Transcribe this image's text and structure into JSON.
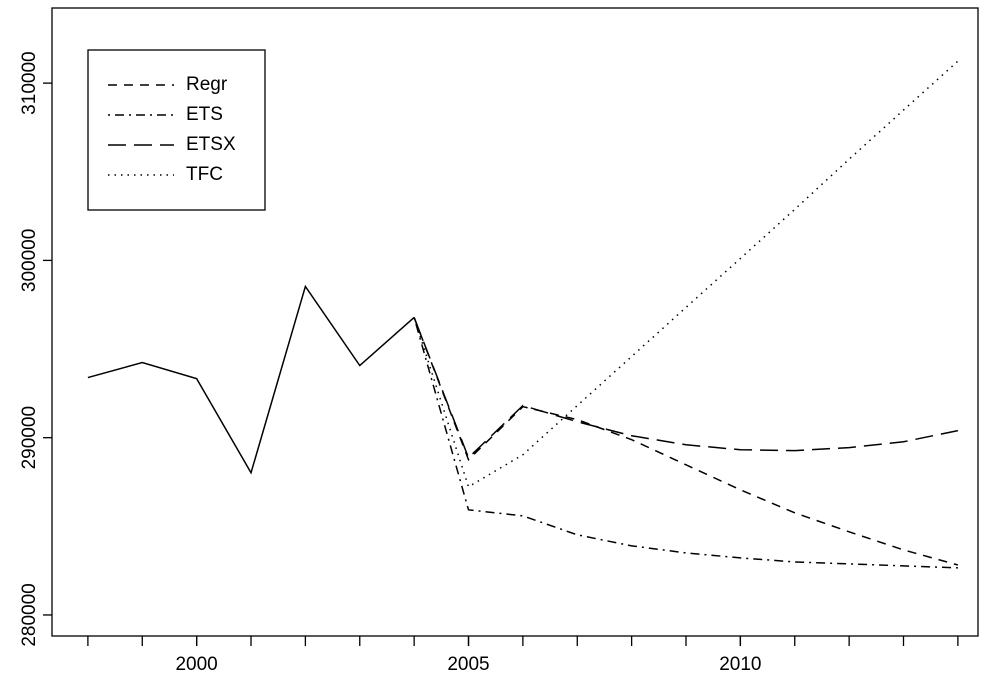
{
  "chart_data": {
    "type": "line",
    "x": [
      1998,
      1999,
      2000,
      2001,
      2002,
      2003,
      2004,
      2005,
      2006,
      2007,
      2008,
      2009,
      2010,
      2011,
      2012,
      2013,
      2014
    ],
    "series": [
      {
        "color": "#000000",
        "linestyle": "solid",
        "values": [
          293390,
          294240,
          293330,
          288020,
          298530,
          294070,
          296780,
          null,
          null,
          null,
          null,
          null,
          null,
          null,
          null,
          null,
          null
        ]
      },
      {
        "name": "Regr",
        "color": "#000000",
        "linestyle": "dashed",
        "values": [
          null,
          null,
          null,
          null,
          null,
          null,
          296780,
          288760,
          291750,
          291020,
          289890,
          288470,
          287060,
          285760,
          284690,
          283670,
          282820
        ]
      },
      {
        "name": "ETS",
        "color": "#000000",
        "linestyle": "dotdash",
        "values": [
          null,
          null,
          null,
          null,
          null,
          null,
          296780,
          285930,
          285590,
          284520,
          283900,
          283500,
          283220,
          282990,
          282880,
          282770,
          282660
        ]
      },
      {
        "name": "ETSX",
        "color": "#000000",
        "linestyle": "longdash",
        "values": [
          null,
          null,
          null,
          null,
          null,
          null,
          296780,
          288870,
          291810,
          290900,
          290110,
          289600,
          289320,
          289270,
          289440,
          289770,
          290400
        ]
      },
      {
        "name": "TFC",
        "color": "#000000",
        "linestyle": "dotted",
        "values": [
          null,
          null,
          null,
          null,
          null,
          null,
          296780,
          287230,
          289040,
          291810,
          294580,
          297350,
          300110,
          302880,
          305710,
          308480,
          311240
        ]
      }
    ],
    "xlim": [
      1997.34,
      2014.37
    ],
    "xticks": [
      2000,
      2005,
      2010
    ],
    "xminorticks": [
      1998,
      1999,
      2000,
      2001,
      2002,
      2003,
      2004,
      2005,
      2006,
      2007,
      2008,
      2009,
      2010,
      2011,
      2012,
      2013,
      2014
    ],
    "ylim": [
      278814,
      314237
    ],
    "yticks": [
      280000,
      290000,
      300000,
      310000
    ],
    "legend": "topleft"
  }
}
